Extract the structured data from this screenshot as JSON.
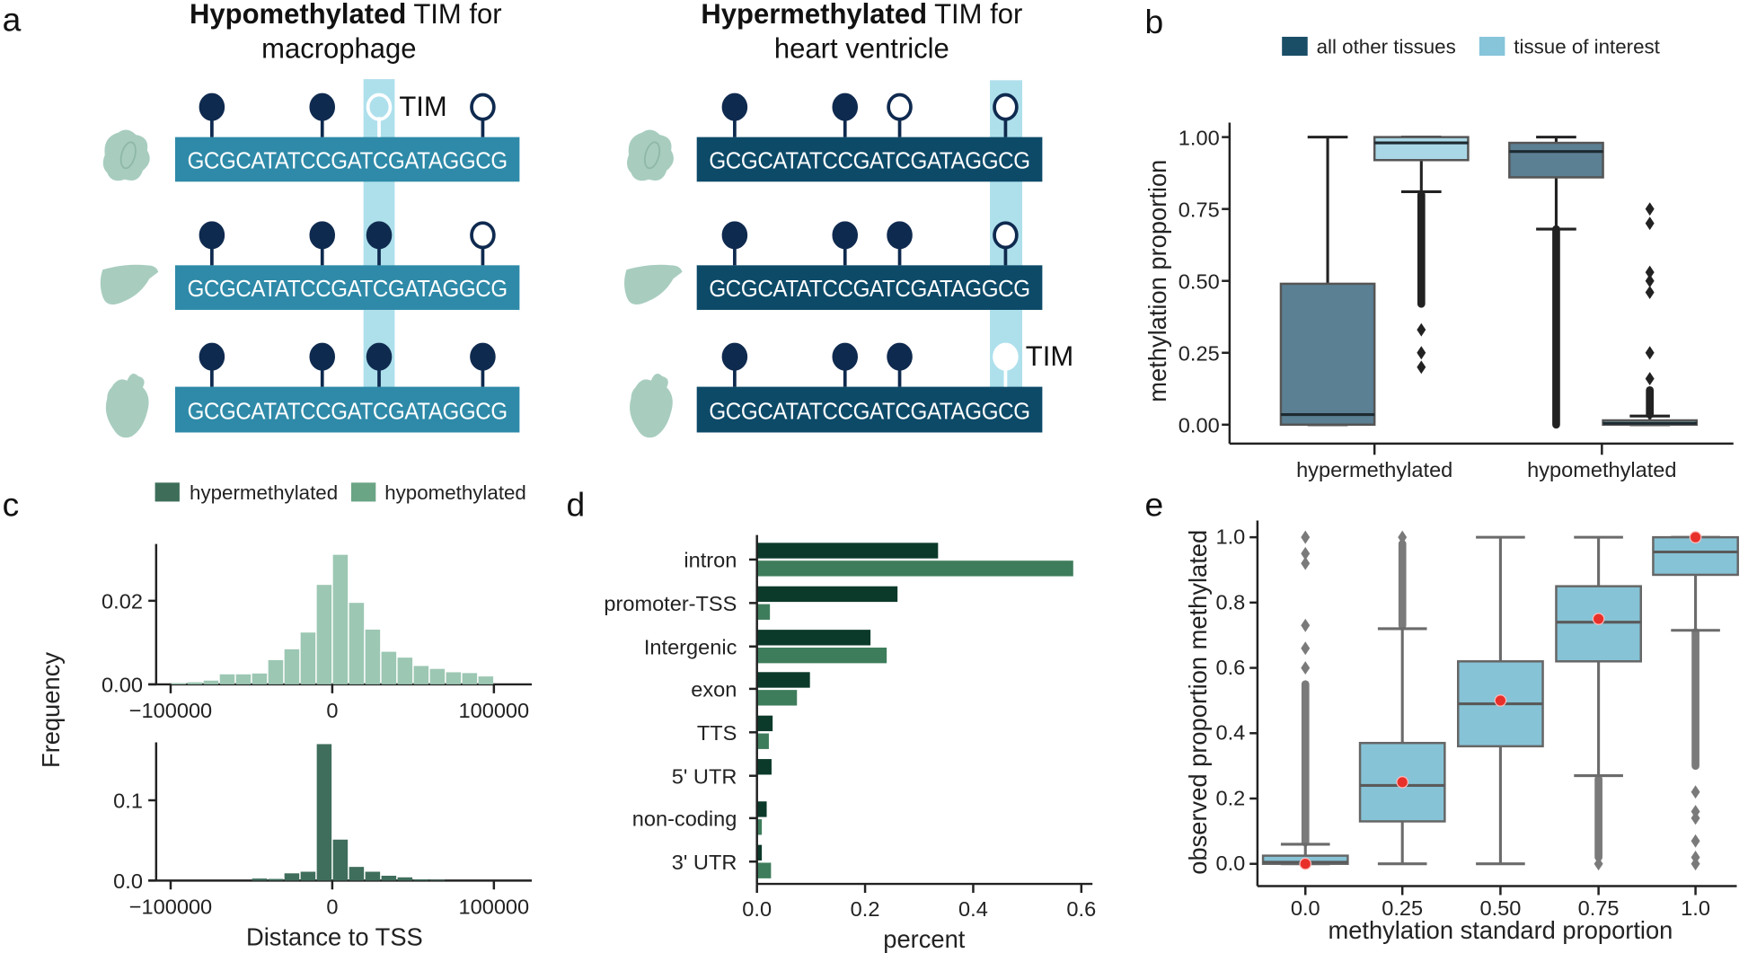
{
  "panel_labels": {
    "a": "a",
    "b": "b",
    "c": "c",
    "d": "d",
    "e": "e"
  },
  "colors": {
    "pin_dark": "#0f2a4f",
    "tissue_icon": "#a8cdbf",
    "strip": "#aee0ec",
    "bar_light": "#2e8aa8",
    "bar_dark": "#0d4a68",
    "b_other": "#5b7f93",
    "b_interest": "#a9d7e6",
    "legend_other": "#1a4d66",
    "legend_interest": "#86c5da",
    "hyper": "#3e6e5a",
    "hypo": "#6aa585",
    "hist_top": "#9cc7b3",
    "hist_bottom": "#3f6e5c",
    "d_hyper": "#0c3a2a",
    "d_hypo": "#3e7d5c",
    "e_box": "#86c3d6",
    "e_mean": "#e8302a"
  },
  "panel_a": {
    "tissues": [
      "macrophage-cell-icon",
      "liver-icon",
      "heart-icon"
    ],
    "left": {
      "title_bold": "Hypomethylated",
      "title_rest": " TIM for",
      "title_line2": "macrophage",
      "sequence": "GCGCATATCCGATCGATAGGCG",
      "tim_label": "TIM",
      "rows": [
        [
          "filled",
          "filled",
          "open-white",
          "open"
        ],
        [
          "filled",
          "filled",
          "filled",
          "open"
        ],
        [
          "filled",
          "filled",
          "filled",
          "filled"
        ]
      ]
    },
    "right": {
      "title_bold": "Hypermethylated",
      "title_rest": " TIM for",
      "title_line2": "heart ventricle",
      "sequence": "GCGCATATCCGATCGATAGGCG",
      "tim_label": "TIM",
      "rows": [
        [
          "filled",
          "filled",
          "open",
          "open"
        ],
        [
          "filled",
          "filled",
          "filled",
          "open"
        ],
        [
          "filled",
          "filled",
          "filled",
          "filled-white"
        ]
      ]
    }
  },
  "chart_data": [
    {
      "panel": "b",
      "type": "box",
      "ylabel": "methylation proportion",
      "ylim": [
        0,
        1
      ],
      "yticks": [
        "0.00",
        "0.25",
        "0.50",
        "0.75",
        "1.00"
      ],
      "categories": [
        "hypermethylated",
        "hypomethylated"
      ],
      "legend": [
        "all other tissues",
        "tissue of interest"
      ],
      "legend_position": "top",
      "boxes": [
        {
          "category": "hypermethylated",
          "group": "all other tissues",
          "q1": 0.0,
          "median": 0.035,
          "q3": 0.49,
          "whisker_low": 0.0,
          "whisker_high": 1.0,
          "outliers": [],
          "outlier_range": null
        },
        {
          "category": "hypermethylated",
          "group": "tissue of interest",
          "q1": 0.92,
          "median": 0.98,
          "q3": 1.0,
          "whisker_low": 0.81,
          "whisker_high": 1.0,
          "outliers": [
            0.2,
            0.25,
            0.33
          ],
          "outlier_range": [
            0.42,
            0.8
          ]
        },
        {
          "category": "hypomethylated",
          "group": "all other tissues",
          "q1": 0.86,
          "median": 0.95,
          "q3": 0.98,
          "whisker_low": 0.68,
          "whisker_high": 1.0,
          "outliers": [],
          "outlier_range": [
            0.0,
            0.68
          ]
        },
        {
          "category": "hypomethylated",
          "group": "tissue of interest",
          "q1": 0.0,
          "median": 0.005,
          "q3": 0.015,
          "whisker_low": 0.0,
          "whisker_high": 0.03,
          "outliers": [
            0.16,
            0.25,
            0.46,
            0.5,
            0.53,
            0.7,
            0.75
          ],
          "outlier_range": [
            0.035,
            0.12
          ]
        }
      ]
    },
    {
      "panel": "c-top",
      "type": "bar",
      "series_name": "hypomethylated",
      "ylabel": "Frequency",
      "xlim": [
        -100000,
        100000
      ],
      "xticks": [
        "−100000",
        "0",
        "100000"
      ],
      "yticks": [
        "0.00",
        "0.02"
      ],
      "bin_width": 10000,
      "bin_centers": [
        -95000,
        -85000,
        -75000,
        -65000,
        -55000,
        -45000,
        -35000,
        -25000,
        -15000,
        -5000,
        5000,
        15000,
        25000,
        35000,
        45000,
        55000,
        65000,
        75000,
        85000,
        95000
      ],
      "values": [
        0.0003,
        0.0005,
        0.0009,
        0.0024,
        0.0024,
        0.0026,
        0.0058,
        0.0084,
        0.0124,
        0.0238,
        0.031,
        0.0195,
        0.0131,
        0.0078,
        0.0064,
        0.0044,
        0.0037,
        0.0029,
        0.0027,
        0.0019
      ],
      "legend": [
        "hypermethylated",
        "hypomethylated"
      ]
    },
    {
      "panel": "c-bottom",
      "type": "bar",
      "series_name": "hypermethylated",
      "xlabel": "Distance to TSS",
      "xlim": [
        -100000,
        100000
      ],
      "xticks": [
        "−100000",
        "0",
        "100000"
      ],
      "yticks": [
        "0.0",
        "0.1"
      ],
      "bin_width": 10000,
      "bin_centers": [
        -45000,
        -35000,
        -25000,
        -15000,
        -5000,
        5000,
        15000,
        25000,
        35000,
        45000,
        55000,
        65000
      ],
      "values": [
        0.0025,
        0.002,
        0.009,
        0.011,
        0.17,
        0.051,
        0.017,
        0.011,
        0.006,
        0.004,
        0.0015,
        0.001
      ]
    },
    {
      "panel": "d",
      "type": "bar",
      "orientation": "horizontal",
      "xlabel": "percent",
      "xlim": [
        0,
        0.62
      ],
      "xticks": [
        "0.0",
        "0.2",
        "0.4",
        "0.6"
      ],
      "categories": [
        "intron",
        "promoter-TSS",
        "Intergenic",
        "exon",
        "TTS",
        "5' UTR",
        "non-coding",
        "3' UTR"
      ],
      "series": [
        {
          "values": [
            0.335,
            0.26,
            0.21,
            0.098,
            0.029,
            0.027,
            0.018,
            0.009
          ]
        },
        {
          "values": [
            0.585,
            0.024,
            0.24,
            0.074,
            0.022,
            0.0,
            0.009,
            0.026
          ]
        }
      ]
    },
    {
      "panel": "e",
      "type": "box",
      "xlabel": "methylation standard proportion",
      "ylabel": "observed proportion methylated",
      "ylim": [
        0,
        1
      ],
      "yticks": [
        "0.0",
        "0.2",
        "0.4",
        "0.6",
        "0.8",
        "1.0"
      ],
      "categories": [
        "0.0",
        "0.25",
        "0.50",
        "0.75",
        "1.0"
      ],
      "boxes": [
        {
          "category": "0.0",
          "q1": 0.0,
          "median": 0.005,
          "q3": 0.025,
          "whisker_low": 0.0,
          "whisker_high": 0.06,
          "mean": 0.0,
          "outliers": [
            0.6,
            0.66,
            0.73,
            0.92,
            0.95,
            1.0
          ],
          "outlier_range": [
            0.065,
            0.55
          ]
        },
        {
          "category": "0.25",
          "q1": 0.13,
          "median": 0.24,
          "q3": 0.37,
          "whisker_low": 0.0,
          "whisker_high": 0.72,
          "mean": 0.25,
          "outliers": [
            1.0
          ],
          "outlier_range": [
            0.73,
            0.98
          ]
        },
        {
          "category": "0.50",
          "q1": 0.36,
          "median": 0.49,
          "q3": 0.62,
          "whisker_low": 0.0,
          "whisker_high": 1.0,
          "mean": 0.5,
          "outliers": [],
          "outlier_range": null
        },
        {
          "category": "0.75",
          "q1": 0.62,
          "median": 0.74,
          "q3": 0.85,
          "whisker_low": 0.27,
          "whisker_high": 1.0,
          "mean": 0.75,
          "outliers": [
            0.0
          ],
          "outlier_range": [
            0.02,
            0.26
          ]
        },
        {
          "category": "1.0",
          "q1": 0.885,
          "median": 0.955,
          "q3": 1.0,
          "whisker_low": 0.715,
          "whisker_high": 1.0,
          "mean": 1.0,
          "outliers": [
            0.0,
            0.02,
            0.07,
            0.14,
            0.16,
            0.22
          ],
          "outlier_range": [
            0.3,
            0.71
          ]
        }
      ]
    }
  ]
}
